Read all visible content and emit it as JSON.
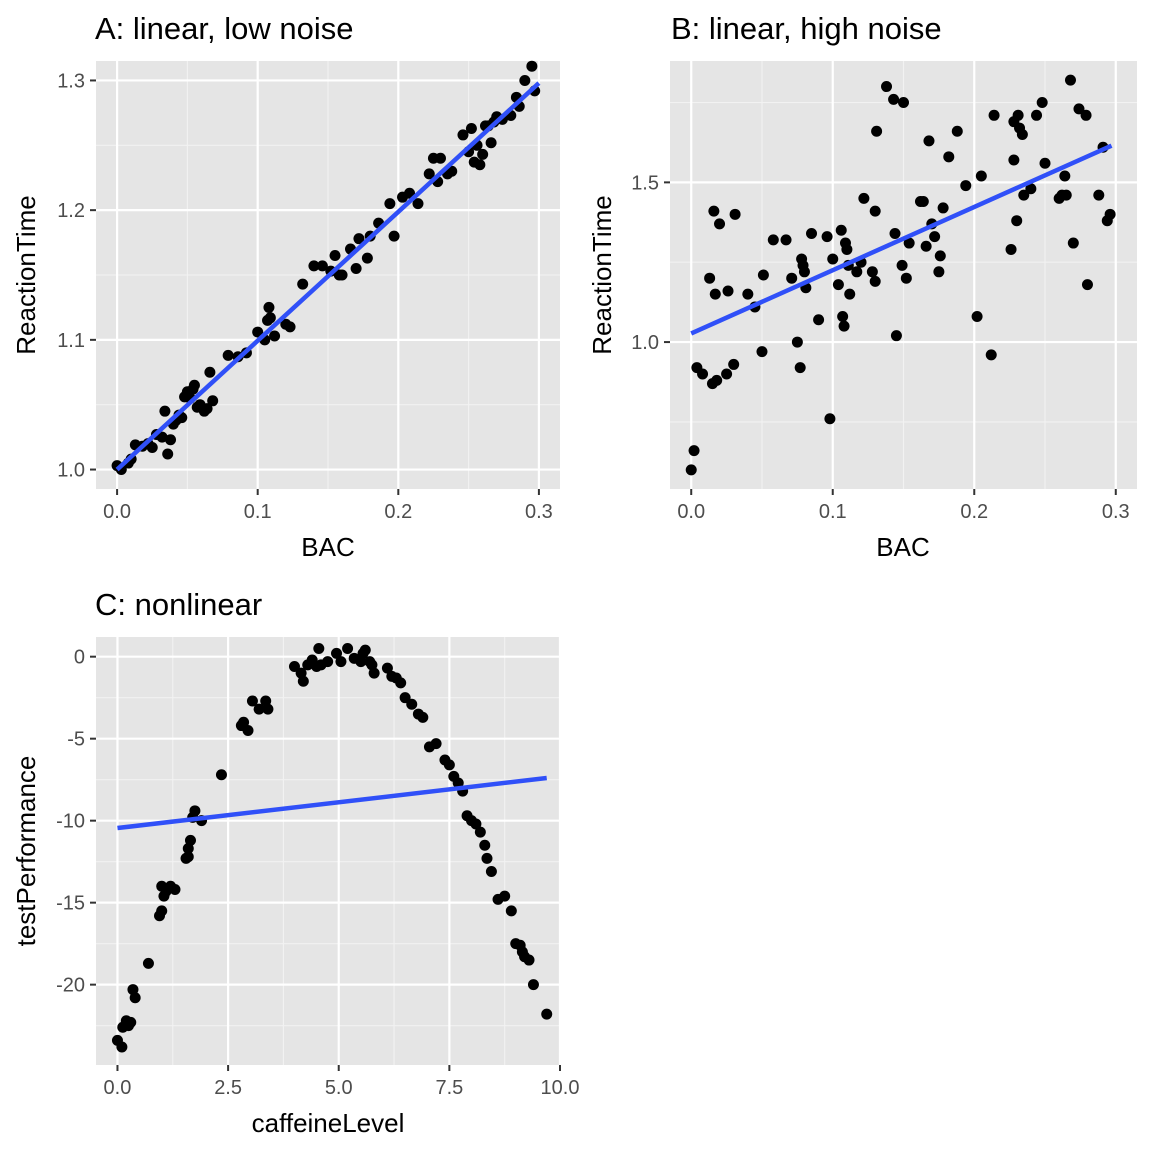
{
  "chart_data": [
    {
      "id": "A",
      "type": "scatter",
      "title": "A: linear, low noise",
      "xlabel": "BAC",
      "ylabel": "ReactionTime",
      "xlim": [
        -0.015,
        0.315
      ],
      "ylim": [
        0.985,
        1.315
      ],
      "xticks": [
        0.0,
        0.1,
        0.2,
        0.3
      ],
      "xtick_labels": [
        "0.0",
        "0.1",
        "0.2",
        "0.3"
      ],
      "yticks": [
        1.0,
        1.1,
        1.2,
        1.3
      ],
      "ytick_labels": [
        "1.0",
        "1.1",
        "1.2",
        "1.3"
      ],
      "grid": true,
      "points": [
        [
          0.0,
          1.003
        ],
        [
          0.003,
          1.0
        ],
        [
          0.008,
          1.005
        ],
        [
          0.01,
          1.008
        ],
        [
          0.013,
          1.019
        ],
        [
          0.018,
          1.018
        ],
        [
          0.022,
          1.02
        ],
        [
          0.025,
          1.017
        ],
        [
          0.028,
          1.027
        ],
        [
          0.032,
          1.025
        ],
        [
          0.034,
          1.045
        ],
        [
          0.036,
          1.012
        ],
        [
          0.038,
          1.023
        ],
        [
          0.04,
          1.035
        ],
        [
          0.042,
          1.038
        ],
        [
          0.044,
          1.042
        ],
        [
          0.046,
          1.04
        ],
        [
          0.048,
          1.056
        ],
        [
          0.05,
          1.06
        ],
        [
          0.052,
          1.055
        ],
        [
          0.054,
          1.062
        ],
        [
          0.055,
          1.065
        ],
        [
          0.057,
          1.048
        ],
        [
          0.059,
          1.05
        ],
        [
          0.062,
          1.045
        ],
        [
          0.064,
          1.047
        ],
        [
          0.066,
          1.075
        ],
        [
          0.068,
          1.053
        ],
        [
          0.079,
          1.088
        ],
        [
          0.086,
          1.087
        ],
        [
          0.092,
          1.09
        ],
        [
          0.1,
          1.106
        ],
        [
          0.105,
          1.1
        ],
        [
          0.107,
          1.115
        ],
        [
          0.108,
          1.125
        ],
        [
          0.109,
          1.117
        ],
        [
          0.112,
          1.103
        ],
        [
          0.12,
          1.112
        ],
        [
          0.123,
          1.11
        ],
        [
          0.132,
          1.143
        ],
        [
          0.14,
          1.157
        ],
        [
          0.146,
          1.157
        ],
        [
          0.152,
          1.153
        ],
        [
          0.155,
          1.165
        ],
        [
          0.158,
          1.15
        ],
        [
          0.16,
          1.15
        ],
        [
          0.166,
          1.17
        ],
        [
          0.17,
          1.155
        ],
        [
          0.172,
          1.178
        ],
        [
          0.178,
          1.163
        ],
        [
          0.18,
          1.18
        ],
        [
          0.186,
          1.19
        ],
        [
          0.194,
          1.205
        ],
        [
          0.197,
          1.18
        ],
        [
          0.203,
          1.21
        ],
        [
          0.208,
          1.213
        ],
        [
          0.214,
          1.205
        ],
        [
          0.222,
          1.228
        ],
        [
          0.225,
          1.24
        ],
        [
          0.228,
          1.222
        ],
        [
          0.23,
          1.24
        ],
        [
          0.235,
          1.228
        ],
        [
          0.238,
          1.23
        ],
        [
          0.246,
          1.258
        ],
        [
          0.25,
          1.245
        ],
        [
          0.252,
          1.263
        ],
        [
          0.254,
          1.237
        ],
        [
          0.256,
          1.25
        ],
        [
          0.258,
          1.235
        ],
        [
          0.26,
          1.243
        ],
        [
          0.262,
          1.265
        ],
        [
          0.264,
          1.265
        ],
        [
          0.266,
          1.252
        ],
        [
          0.268,
          1.268
        ],
        [
          0.27,
          1.272
        ],
        [
          0.274,
          1.27
        ],
        [
          0.28,
          1.273
        ],
        [
          0.284,
          1.287
        ],
        [
          0.286,
          1.28
        ],
        [
          0.29,
          1.3
        ],
        [
          0.295,
          1.311
        ],
        [
          0.297,
          1.292
        ]
      ],
      "fit": {
        "x": [
          0.0,
          0.3
        ],
        "y": [
          1.0,
          1.298
        ]
      }
    },
    {
      "id": "B",
      "type": "scatter",
      "title": "B: linear, high noise",
      "xlabel": "BAC",
      "ylabel": "ReactionTime",
      "xlim": [
        -0.015,
        0.315
      ],
      "ylim": [
        0.54,
        1.88
      ],
      "xticks": [
        0.0,
        0.1,
        0.2,
        0.3
      ],
      "xtick_labels": [
        "0.0",
        "0.1",
        "0.2",
        "0.3"
      ],
      "yticks": [
        1.0,
        1.5
      ],
      "ytick_labels": [
        "1.0",
        "1.5"
      ],
      "grid": true,
      "points": [
        [
          0.0,
          0.6
        ],
        [
          0.002,
          0.66
        ],
        [
          0.004,
          0.92
        ],
        [
          0.008,
          0.9
        ],
        [
          0.013,
          1.2
        ],
        [
          0.015,
          0.87
        ],
        [
          0.016,
          1.41
        ],
        [
          0.017,
          1.15
        ],
        [
          0.018,
          0.88
        ],
        [
          0.02,
          1.37
        ],
        [
          0.025,
          0.9
        ],
        [
          0.026,
          1.16
        ],
        [
          0.03,
          0.93
        ],
        [
          0.031,
          1.4
        ],
        [
          0.04,
          1.15
        ],
        [
          0.045,
          1.11
        ],
        [
          0.05,
          0.97
        ],
        [
          0.051,
          1.21
        ],
        [
          0.058,
          1.32
        ],
        [
          0.067,
          1.32
        ],
        [
          0.071,
          1.2
        ],
        [
          0.075,
          1.0
        ],
        [
          0.077,
          0.92
        ],
        [
          0.078,
          1.26
        ],
        [
          0.079,
          1.24
        ],
        [
          0.08,
          1.22
        ],
        [
          0.081,
          1.17
        ],
        [
          0.085,
          1.34
        ],
        [
          0.09,
          1.07
        ],
        [
          0.096,
          1.33
        ],
        [
          0.098,
          0.76
        ],
        [
          0.1,
          1.26
        ],
        [
          0.104,
          1.18
        ],
        [
          0.106,
          1.35
        ],
        [
          0.107,
          1.08
        ],
        [
          0.108,
          1.05
        ],
        [
          0.109,
          1.31
        ],
        [
          0.11,
          1.29
        ],
        [
          0.111,
          1.24
        ],
        [
          0.112,
          1.15
        ],
        [
          0.117,
          1.22
        ],
        [
          0.12,
          1.25
        ],
        [
          0.122,
          1.45
        ],
        [
          0.128,
          1.22
        ],
        [
          0.13,
          1.19
        ],
        [
          0.13,
          1.41
        ],
        [
          0.131,
          1.66
        ],
        [
          0.138,
          1.8
        ],
        [
          0.143,
          1.76
        ],
        [
          0.144,
          1.34
        ],
        [
          0.145,
          1.02
        ],
        [
          0.149,
          1.24
        ],
        [
          0.15,
          1.75
        ],
        [
          0.152,
          1.2
        ],
        [
          0.154,
          1.31
        ],
        [
          0.162,
          1.44
        ],
        [
          0.164,
          1.44
        ],
        [
          0.166,
          1.3
        ],
        [
          0.168,
          1.63
        ],
        [
          0.17,
          1.37
        ],
        [
          0.172,
          1.33
        ],
        [
          0.175,
          1.22
        ],
        [
          0.176,
          1.27
        ],
        [
          0.178,
          1.42
        ],
        [
          0.182,
          1.58
        ],
        [
          0.188,
          1.66
        ],
        [
          0.194,
          1.49
        ],
        [
          0.202,
          1.08
        ],
        [
          0.205,
          1.52
        ],
        [
          0.212,
          0.96
        ],
        [
          0.214,
          1.71
        ],
        [
          0.226,
          1.29
        ],
        [
          0.228,
          1.57
        ],
        [
          0.228,
          1.69
        ],
        [
          0.23,
          1.38
        ],
        [
          0.231,
          1.71
        ],
        [
          0.232,
          1.67
        ],
        [
          0.234,
          1.65
        ],
        [
          0.235,
          1.46
        ],
        [
          0.24,
          1.48
        ],
        [
          0.244,
          1.71
        ],
        [
          0.248,
          1.75
        ],
        [
          0.25,
          1.56
        ],
        [
          0.26,
          1.45
        ],
        [
          0.262,
          1.46
        ],
        [
          0.264,
          1.52
        ],
        [
          0.265,
          1.46
        ],
        [
          0.268,
          1.82
        ],
        [
          0.27,
          1.31
        ],
        [
          0.274,
          1.73
        ],
        [
          0.279,
          1.71
        ],
        [
          0.28,
          1.18
        ],
        [
          0.288,
          1.46
        ],
        [
          0.291,
          1.61
        ],
        [
          0.294,
          1.38
        ],
        [
          0.296,
          1.4
        ]
      ],
      "fit": {
        "x": [
          0.0,
          0.297
        ],
        "y": [
          1.027,
          1.615
        ]
      }
    },
    {
      "id": "C",
      "type": "scatter",
      "title": "C: nonlinear",
      "xlabel": "caffeineLevel",
      "ylabel": "testPerformance",
      "xlim": [
        -0.485,
        10.0
      ],
      "ylim": [
        -24.9,
        1.2
      ],
      "xticks": [
        0.0,
        2.5,
        5.0,
        7.5,
        10.0
      ],
      "xtick_labels": [
        "0.0",
        "2.5",
        "5.0",
        "7.5",
        "10.0"
      ],
      "yticks": [
        0,
        -5,
        -10,
        -15,
        -20
      ],
      "ytick_labels": [
        "0",
        "-5",
        "-10",
        "-15",
        "-20"
      ],
      "grid": true,
      "points": [
        [
          0.0,
          -23.4
        ],
        [
          0.1,
          -23.8
        ],
        [
          0.12,
          -22.6
        ],
        [
          0.2,
          -22.2
        ],
        [
          0.25,
          -22.5
        ],
        [
          0.3,
          -22.3
        ],
        [
          0.35,
          -20.3
        ],
        [
          0.4,
          -20.8
        ],
        [
          0.7,
          -18.7
        ],
        [
          0.95,
          -15.8
        ],
        [
          1.0,
          -15.5
        ],
        [
          1.0,
          -14.0
        ],
        [
          1.05,
          -14.6
        ],
        [
          1.1,
          -14.3
        ],
        [
          1.2,
          -14.0
        ],
        [
          1.3,
          -14.2
        ],
        [
          1.55,
          -12.3
        ],
        [
          1.6,
          -11.7
        ],
        [
          1.6,
          -12.2
        ],
        [
          1.65,
          -11.2
        ],
        [
          1.7,
          -9.8
        ],
        [
          1.75,
          -9.4
        ],
        [
          1.9,
          -10.0
        ],
        [
          2.35,
          -7.2
        ],
        [
          2.8,
          -4.2
        ],
        [
          2.85,
          -4.0
        ],
        [
          2.95,
          -4.5
        ],
        [
          3.05,
          -2.7
        ],
        [
          3.2,
          -3.2
        ],
        [
          3.35,
          -2.7
        ],
        [
          3.4,
          -3.2
        ],
        [
          4.0,
          -0.6
        ],
        [
          4.15,
          -1.0
        ],
        [
          4.2,
          -1.5
        ],
        [
          4.3,
          -0.5
        ],
        [
          4.4,
          -0.2
        ],
        [
          4.5,
          -0.6
        ],
        [
          4.55,
          0.5
        ],
        [
          4.6,
          -0.5
        ],
        [
          4.75,
          -0.3
        ],
        [
          4.95,
          0.2
        ],
        [
          5.05,
          -0.3
        ],
        [
          5.2,
          0.5
        ],
        [
          5.35,
          -0.1
        ],
        [
          5.5,
          -0.3
        ],
        [
          5.55,
          0.2
        ],
        [
          5.6,
          0.4
        ],
        [
          5.7,
          -0.3
        ],
        [
          5.75,
          -0.5
        ],
        [
          5.8,
          -1.0
        ],
        [
          6.1,
          -0.7
        ],
        [
          6.2,
          -1.2
        ],
        [
          6.3,
          -1.3
        ],
        [
          6.4,
          -1.6
        ],
        [
          6.5,
          -2.5
        ],
        [
          6.65,
          -2.9
        ],
        [
          6.8,
          -3.5
        ],
        [
          6.9,
          -3.7
        ],
        [
          7.05,
          -5.5
        ],
        [
          7.2,
          -5.3
        ],
        [
          7.4,
          -6.3
        ],
        [
          7.5,
          -6.6
        ],
        [
          7.6,
          -7.3
        ],
        [
          7.7,
          -7.7
        ],
        [
          7.8,
          -8.2
        ],
        [
          7.9,
          -9.7
        ],
        [
          8.0,
          -10.0
        ],
        [
          8.1,
          -10.2
        ],
        [
          8.2,
          -10.7
        ],
        [
          8.3,
          -11.5
        ],
        [
          8.35,
          -12.3
        ],
        [
          8.45,
          -13.1
        ],
        [
          8.6,
          -14.8
        ],
        [
          8.75,
          -14.6
        ],
        [
          8.9,
          -15.5
        ],
        [
          9.0,
          -17.5
        ],
        [
          9.1,
          -17.6
        ],
        [
          9.15,
          -18.0
        ],
        [
          9.2,
          -18.3
        ],
        [
          9.3,
          -18.5
        ],
        [
          9.4,
          -20.0
        ],
        [
          9.7,
          -21.8
        ]
      ],
      "fit": {
        "x": [
          0.0,
          9.7
        ],
        "y": [
          -10.45,
          -7.4
        ]
      }
    }
  ]
}
